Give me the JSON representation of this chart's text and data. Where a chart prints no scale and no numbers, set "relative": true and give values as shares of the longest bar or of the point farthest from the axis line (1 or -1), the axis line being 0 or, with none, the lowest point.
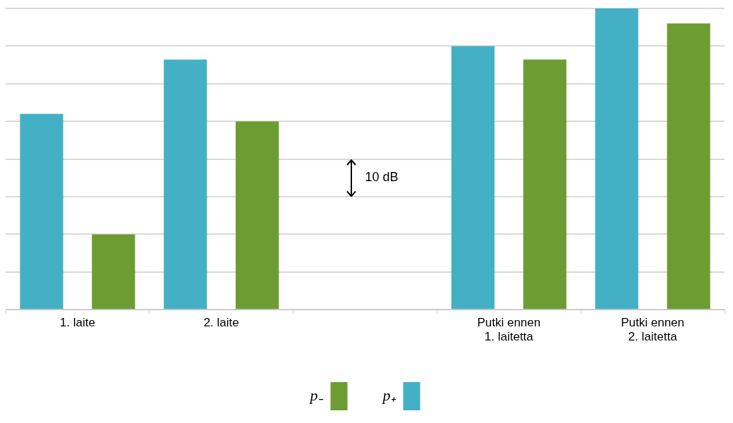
{
  "chart_data": {
    "type": "bar",
    "relative": true,
    "categories": [
      "1. laite",
      "2. laite",
      null,
      "Putki ennen 1. laitetta",
      "Putki ennen 2. laitetta"
    ],
    "series": [
      {
        "name": "p₊",
        "color": "#43b0c6",
        "values": [
          0.65,
          0.83,
          null,
          0.875,
          1
        ]
      },
      {
        "name": "p₋",
        "color": "#6c9c32",
        "values": [
          0.25,
          0.625,
          null,
          0.83,
          0.95
        ]
      }
    ],
    "annotations": [
      "10 dB"
    ],
    "grid": "y",
    "legend": "bottom"
  }
}
